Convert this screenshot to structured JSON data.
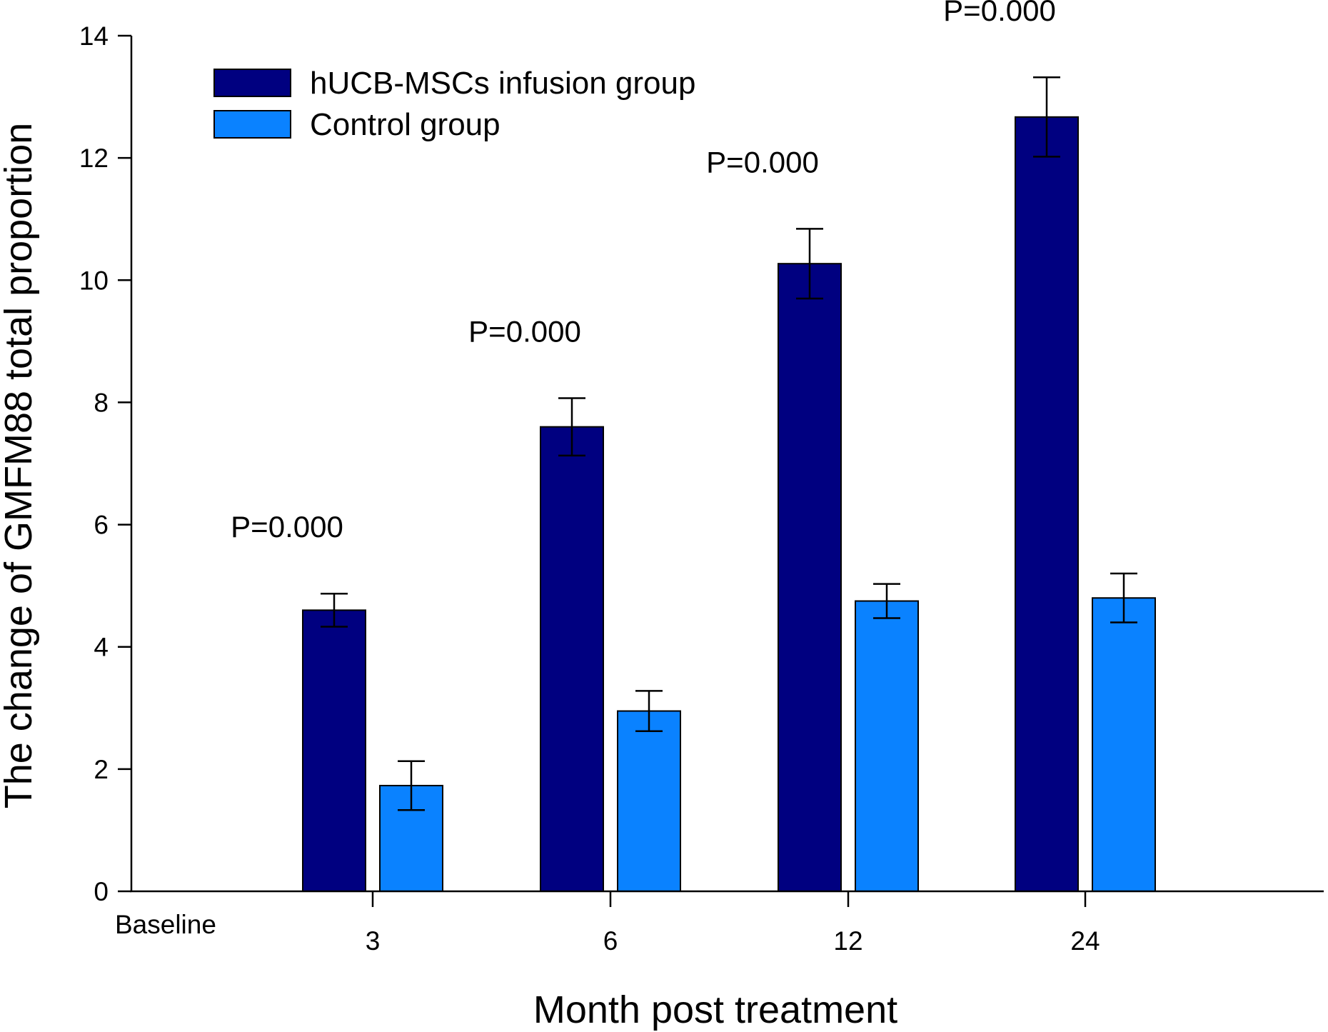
{
  "chart_data": {
    "type": "bar",
    "xlabel": "Month post treatment",
    "ylabel": "The change of GMFM88 total proportion",
    "ylim": [
      0,
      14
    ],
    "yticks": [
      "0",
      "2",
      "4",
      "6",
      "8",
      "10",
      "12",
      "14"
    ],
    "baseline_label": "Baseline",
    "categories": [
      "3",
      "6",
      "12",
      "24"
    ],
    "series": [
      {
        "name": "hUCB-MSCs infusion group",
        "color": "#000080",
        "values": [
          4.6,
          7.6,
          10.27,
          12.67
        ],
        "errors": [
          0.27,
          0.47,
          0.57,
          0.65
        ]
      },
      {
        "name": "Control group",
        "color": "#0a82ff",
        "values": [
          1.73,
          2.95,
          4.75,
          4.8
        ],
        "errors": [
          0.4,
          0.33,
          0.28,
          0.4
        ]
      }
    ],
    "annotations": [
      "P=0.000",
      "P=0.000",
      "P=0.000",
      "P=0.000"
    ],
    "legend": "top-left",
    "grid": false
  }
}
